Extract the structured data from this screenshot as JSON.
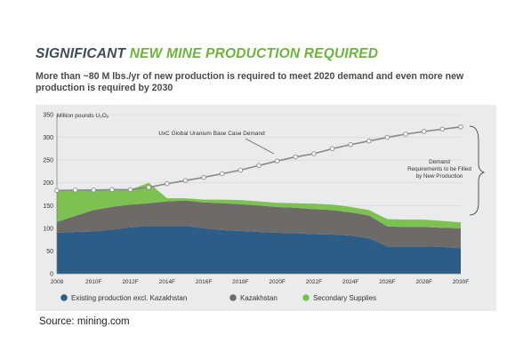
{
  "page": {
    "title_part1": "SIGNIFICANT ",
    "title_part2": "NEW MINE PRODUCTION REQUIRED",
    "subtitle": "More than ~80 M lbs./yr of new production is required to meet 2020 demand and even more new production is required by 2030",
    "source": "Source: mining.com"
  },
  "colors": {
    "existing": "#2c5d87",
    "kazakhstan": "#6e6a68",
    "secondary": "#7cc151",
    "demand": "#888888",
    "title_dark": "#3d4a5c",
    "title_green": "#6db33f"
  },
  "chart_data": {
    "type": "area",
    "stacked": true,
    "ylabel": "Million pounds U₃O₈",
    "ylim": [
      0,
      350
    ],
    "yticks": [
      0,
      50,
      100,
      150,
      200,
      250,
      300,
      350
    ],
    "x": [
      2008,
      2009,
      2010,
      2011,
      2012,
      2013,
      2014,
      2015,
      2016,
      2017,
      2018,
      2019,
      2020,
      2021,
      2022,
      2023,
      2024,
      2025,
      2026,
      2027,
      2028,
      2029,
      2030
    ],
    "xtick_labels": [
      "2008",
      "2010F",
      "2012F",
      "2014F",
      "2016F",
      "2018F",
      "2020F",
      "2022F",
      "2024F",
      "2026F",
      "2028F",
      "2030F"
    ],
    "series": [
      {
        "name": "Existing production excl. Kazakhstan",
        "values": [
          90,
          92,
          93,
          97,
          102,
          105,
          105,
          105,
          100,
          96,
          94,
          92,
          90,
          89,
          87,
          86,
          84,
          78,
          60,
          60,
          60,
          59,
          56
        ]
      },
      {
        "name": "Kazakhstan",
        "values": [
          24,
          35,
          47,
          50,
          50,
          50,
          54,
          56,
          57,
          59,
          59,
          58,
          57,
          56,
          55,
          54,
          51,
          50,
          44,
          43,
          43,
          42,
          44
        ]
      },
      {
        "name": "Secondary Supplies",
        "values": [
          69,
          55,
          43,
          36,
          33,
          45,
          7,
          5,
          6,
          8,
          9,
          9,
          9,
          10,
          12,
          12,
          12,
          12,
          16,
          16,
          16,
          15,
          13
        ]
      }
    ],
    "demand": {
      "name": "UxC Global Uranium Base Case Demand",
      "values": [
        183,
        184,
        184,
        185,
        185,
        190,
        198,
        205,
        212,
        220,
        228,
        238,
        248,
        257,
        264,
        275,
        284,
        292,
        300,
        307,
        313,
        318,
        323
      ]
    },
    "annotations": {
      "demand_label": "UxC Global Uranium Base Case Demand",
      "requirement_label": "Demand Requirements to be Filled by New Production"
    },
    "legend_position": "bottom"
  }
}
